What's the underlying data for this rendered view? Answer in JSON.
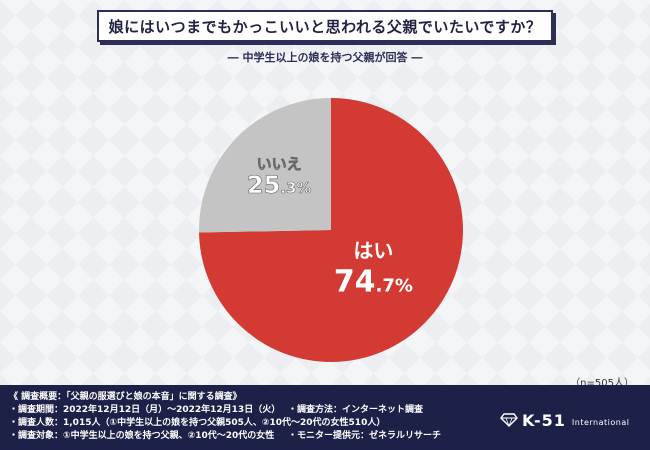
{
  "title": "娘にはいつまでもかっこいいと思われる父親でいたいですか？",
  "subtitle": "― 中学生以上の娘を持つ父親が回答 ―",
  "chart_data": {
    "type": "pie",
    "slices": [
      {
        "label": "はい",
        "value": 74.7,
        "int": "74",
        "dec": ".7%",
        "color": "#d33a34"
      },
      {
        "label": "いいえ",
        "value": 25.3,
        "int": "25",
        "dec": ".3%",
        "color": "#c4c4c4"
      }
    ]
  },
  "n_note": "（n=505人）",
  "footer": {
    "heading": "《 調査概要：「父親の服選びと娘の本音」に関する調査》",
    "period": "・調査期間：2022年12月12日（月）～2022年12月13日（火）",
    "method": "・調査方法：インターネット調査",
    "count": "・調査人数：1,015人（①中学生以上の娘を持つ父親505人、②10代～20代の女性510人）",
    "target": "・調査対象：①中学生以上の娘を持つ父親、②10代～20代の女性",
    "provider": "・モニター提供元：ゼネラルリサーチ"
  },
  "logo": {
    "text": "K-51",
    "sub": "International"
  }
}
